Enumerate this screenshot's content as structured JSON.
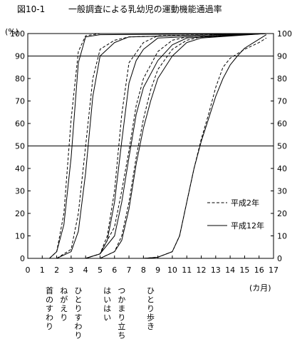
{
  "chart_data": {
    "type": "line",
    "figure_label": "図10-1",
    "title": "一般調査による乳幼児の運動機能通過率",
    "ylabel": "(%)",
    "xlabel": "(カ月)",
    "xlim": [
      0,
      17
    ],
    "ylim": [
      0,
      100
    ],
    "x_ticks": [
      0,
      1,
      2,
      3,
      4,
      5,
      6,
      7,
      8,
      9,
      10,
      11,
      12,
      13,
      14,
      15,
      16,
      17
    ],
    "y_ticks": [
      0,
      10,
      20,
      30,
      40,
      50,
      60,
      70,
      80,
      90,
      100
    ],
    "reference_lines": [
      50,
      90
    ],
    "grid": false,
    "legend_position": "right-middle",
    "legend": [
      {
        "label": "平成2年",
        "dash": "dashed"
      },
      {
        "label": "平成12年",
        "dash": "solid"
      }
    ],
    "milestones": [
      {
        "label": "首のすわり",
        "x": 1.5
      },
      {
        "label": "ねがえり",
        "x": 2.5
      },
      {
        "label": "ひとりすわり",
        "x": 3.5
      },
      {
        "label": "はいはい",
        "x": 5.5
      },
      {
        "label": "つかまり立ち",
        "x": 6.5
      },
      {
        "label": "ひとり歩き",
        "x": 8.5
      }
    ],
    "series": [
      {
        "milestone": "首のすわり",
        "year": "平成2年",
        "dash": "dashed",
        "points": [
          [
            1.5,
            0
          ],
          [
            2,
            3
          ],
          [
            2.5,
            20
          ],
          [
            3,
            62
          ],
          [
            3.5,
            92
          ],
          [
            4,
            99
          ],
          [
            5,
            100
          ],
          [
            16.5,
            100
          ]
        ]
      },
      {
        "milestone": "首のすわり",
        "year": "平成12年",
        "dash": "solid",
        "points": [
          [
            1.5,
            0
          ],
          [
            2,
            3
          ],
          [
            2.5,
            15
          ],
          [
            3,
            45
          ],
          [
            3.5,
            87
          ],
          [
            4,
            98.5
          ],
          [
            5,
            99.5
          ],
          [
            16.5,
            100
          ]
        ]
      },
      {
        "milestone": "ねがえり",
        "year": "平成2年",
        "dash": "dashed",
        "points": [
          [
            2,
            0
          ],
          [
            3,
            4
          ],
          [
            3.5,
            20
          ],
          [
            4,
            50
          ],
          [
            4.5,
            80
          ],
          [
            5,
            93
          ],
          [
            6,
            97
          ],
          [
            7,
            98.5
          ],
          [
            16.5,
            100
          ]
        ]
      },
      {
        "milestone": "ねがえり",
        "year": "平成12年",
        "dash": "solid",
        "points": [
          [
            2,
            0
          ],
          [
            3,
            3
          ],
          [
            3.5,
            12
          ],
          [
            4,
            38
          ],
          [
            4.5,
            72
          ],
          [
            5,
            90
          ],
          [
            6,
            96
          ],
          [
            7,
            98.5
          ],
          [
            16.5,
            100
          ]
        ]
      },
      {
        "milestone": "ひとりすわり",
        "year": "平成2年",
        "dash": "dashed",
        "points": [
          [
            4,
            0
          ],
          [
            5,
            2
          ],
          [
            5.5,
            10
          ],
          [
            6,
            30
          ],
          [
            6.5,
            64
          ],
          [
            7,
            87
          ],
          [
            8,
            96
          ],
          [
            9,
            99
          ],
          [
            16.5,
            100
          ]
        ]
      },
      {
        "milestone": "ひとりすわり",
        "year": "平成12年",
        "dash": "solid",
        "points": [
          [
            4,
            0
          ],
          [
            5,
            2
          ],
          [
            5.5,
            8
          ],
          [
            6,
            25
          ],
          [
            6.5,
            52
          ],
          [
            7,
            78
          ],
          [
            7.5,
            88
          ],
          [
            8,
            93
          ],
          [
            9,
            98
          ],
          [
            16.5,
            100
          ]
        ]
      },
      {
        "milestone": "はいはい",
        "year": "平成2年",
        "dash": "dashed",
        "points": [
          [
            4,
            0
          ],
          [
            5,
            2
          ],
          [
            6,
            14
          ],
          [
            6.5,
            30
          ],
          [
            7,
            48
          ],
          [
            7.5,
            68
          ],
          [
            8,
            80
          ],
          [
            9,
            92
          ],
          [
            10,
            97
          ],
          [
            11,
            98.5
          ],
          [
            16.5,
            100
          ]
        ]
      },
      {
        "milestone": "はいはい",
        "year": "平成12年",
        "dash": "solid",
        "points": [
          [
            4,
            0
          ],
          [
            5,
            2
          ],
          [
            6,
            10
          ],
          [
            6.5,
            25
          ],
          [
            7,
            45
          ],
          [
            7.5,
            64
          ],
          [
            8,
            76
          ],
          [
            9,
            88
          ],
          [
            10,
            95
          ],
          [
            11,
            98
          ],
          [
            16.5,
            100
          ]
        ]
      },
      {
        "milestone": "つかまり立ち",
        "year": "平成2年",
        "dash": "dashed",
        "points": [
          [
            5,
            0
          ],
          [
            6,
            3
          ],
          [
            6.5,
            10
          ],
          [
            7,
            25
          ],
          [
            7.5,
            45
          ],
          [
            8,
            62
          ],
          [
            8.5,
            75
          ],
          [
            9,
            84
          ],
          [
            10,
            93
          ],
          [
            11,
            97
          ],
          [
            12,
            98.5
          ],
          [
            16.5,
            100
          ]
        ]
      },
      {
        "milestone": "つかまり立ち",
        "year": "平成12年",
        "dash": "solid",
        "points": [
          [
            5,
            0
          ],
          [
            6,
            3
          ],
          [
            6.5,
            8
          ],
          [
            7,
            22
          ],
          [
            7.5,
            42
          ],
          [
            8,
            58
          ],
          [
            8.5,
            70
          ],
          [
            9,
            80
          ],
          [
            10,
            90
          ],
          [
            11,
            96
          ],
          [
            12,
            98
          ],
          [
            16.5,
            100
          ]
        ]
      },
      {
        "milestone": "ひとり歩き",
        "year": "平成2年",
        "dash": "dashed",
        "points": [
          [
            8,
            0
          ],
          [
            9,
            0.5
          ],
          [
            10,
            3
          ],
          [
            10.5,
            10
          ],
          [
            11,
            25
          ],
          [
            11.5,
            40
          ],
          [
            12,
            53
          ],
          [
            12.5,
            64
          ],
          [
            13,
            76
          ],
          [
            13.5,
            85
          ],
          [
            14,
            89
          ],
          [
            15,
            93
          ],
          [
            16,
            96
          ],
          [
            16.5,
            98
          ]
        ]
      },
      {
        "milestone": "ひとり歩き",
        "year": "平成12年",
        "dash": "solid",
        "points": [
          [
            8,
            0
          ],
          [
            9,
            0.5
          ],
          [
            10,
            3
          ],
          [
            10.5,
            10
          ],
          [
            11,
            25
          ],
          [
            11.5,
            40
          ],
          [
            12,
            52
          ],
          [
            12.5,
            62
          ],
          [
            13,
            72
          ],
          [
            13.5,
            80
          ],
          [
            14,
            86
          ],
          [
            14.5,
            90
          ],
          [
            15,
            93.5
          ],
          [
            15.5,
            95.5
          ],
          [
            16,
            97.5
          ],
          [
            16.5,
            99.5
          ]
        ]
      }
    ]
  }
}
